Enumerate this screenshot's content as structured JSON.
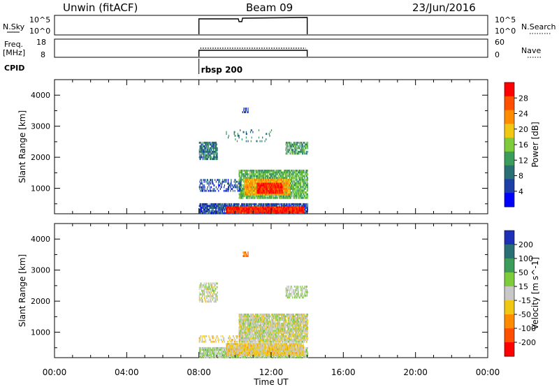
{
  "header": {
    "station": "Unwin (fitACF)",
    "beam": "Beam 09",
    "date": "23/Jun/2016"
  },
  "strips": {
    "nsky_label": "N.Sky",
    "nsky_ticks": [
      "10^5",
      "10^0"
    ],
    "freq_label_line1": "Freq.",
    "freq_label_line2": "[MHz]",
    "freq_ticks": [
      "18",
      "8"
    ],
    "cpid_label": "CPID",
    "nsearch_label": "N.Search",
    "nsearch_ticks": [
      "10^5",
      "10^0"
    ],
    "nave_label": "Nave",
    "nave_ticks": [
      "60",
      "0"
    ],
    "cpid_name": "rbsp 200"
  },
  "x_axis": {
    "label": "Time UT",
    "ticks": [
      "00:00",
      "04:00",
      "08:00",
      "12:00",
      "16:00",
      "20:00",
      "00:00"
    ]
  },
  "colors": {
    "power": [
      "#0000ff",
      "#1e3fa8",
      "#2a6f73",
      "#3c9c5a",
      "#7ecb3c",
      "#f0c814",
      "#ff8c00",
      "#ff5000",
      "#ff0000"
    ],
    "velocity": [
      "#1e2fb8",
      "#2a6f73",
      "#3c9c5a",
      "#7ecb3c",
      "#c8c8c8",
      "#f0c814",
      "#ff8c00",
      "#ff5000",
      "#ff0000"
    ]
  },
  "chart_data": [
    {
      "type": "heatmap",
      "name": "power",
      "ylabel": "Slant Range [km]",
      "xlabel": "",
      "y_ticks": [
        "1000",
        "2000",
        "3000",
        "4000"
      ],
      "ylim": [
        180,
        4500
      ],
      "xlim_hours": [
        0,
        24
      ],
      "colorbar_label": "Power [dB]",
      "colorbar_ticks": [
        "4",
        "8",
        "12",
        "16",
        "20",
        "24",
        "28"
      ],
      "colorbar_range": [
        0,
        32
      ],
      "blobs": [
        {
          "t0": 8.0,
          "t1": 14.0,
          "r0": 200,
          "r1": 520,
          "value": 6,
          "density": 0.8
        },
        {
          "t0": 9.5,
          "t1": 13.8,
          "r0": 220,
          "r1": 420,
          "value": 29,
          "density": 0.95
        },
        {
          "t0": 10.2,
          "t1": 14.0,
          "r0": 720,
          "r1": 1600,
          "value": 14,
          "density": 0.75
        },
        {
          "t0": 10.5,
          "t1": 13.0,
          "r0": 820,
          "r1": 1300,
          "value": 22,
          "density": 0.9
        },
        {
          "t0": 11.2,
          "t1": 12.6,
          "r0": 880,
          "r1": 1180,
          "value": 29,
          "density": 0.95
        },
        {
          "t0": 8.0,
          "t1": 10.3,
          "r0": 900,
          "r1": 1300,
          "value": 6,
          "density": 0.35
        },
        {
          "t0": 8.0,
          "t1": 9.0,
          "r0": 1950,
          "r1": 2500,
          "value": 9,
          "density": 0.7
        },
        {
          "t0": 12.8,
          "t1": 14.0,
          "r0": 2100,
          "r1": 2500,
          "value": 12,
          "density": 0.6
        },
        {
          "t0": 9.5,
          "t1": 12.0,
          "r0": 2500,
          "r1": 2900,
          "value": 10,
          "density": 0.08
        },
        {
          "t0": 10.4,
          "t1": 10.7,
          "r0": 3450,
          "r1": 3600,
          "value": 6,
          "density": 0.6
        }
      ]
    },
    {
      "type": "heatmap",
      "name": "velocity",
      "ylabel": "Slant Range [km]",
      "xlabel": "Time UT",
      "y_ticks": [
        "1000",
        "2000",
        "3000",
        "4000"
      ],
      "ylim": [
        180,
        4500
      ],
      "xlim_hours": [
        0,
        24
      ],
      "colorbar_label": "Velocity [m s^-1]",
      "colorbar_ticks": [
        "200",
        "100",
        "50",
        "15",
        "-15",
        "-50",
        "-100",
        "-200"
      ],
      "colorbar_range": [
        -250,
        250
      ],
      "blobs": [
        {
          "t0": 8.0,
          "t1": 14.0,
          "r0": 200,
          "r1": 520,
          "value": 30,
          "density": 0.75
        },
        {
          "t0": 9.5,
          "t1": 13.8,
          "r0": 280,
          "r1": 650,
          "value": -40,
          "density": 0.9
        },
        {
          "t0": 10.2,
          "t1": 14.0,
          "r0": 720,
          "r1": 1600,
          "value": 0,
          "density": 0.85
        },
        {
          "t0": 8.0,
          "t1": 10.3,
          "r0": 700,
          "r1": 900,
          "value": -40,
          "density": 0.3
        },
        {
          "t0": 8.0,
          "t1": 9.0,
          "r0": 2000,
          "r1": 2600,
          "value": 5,
          "density": 0.5
        },
        {
          "t0": 12.8,
          "t1": 14.0,
          "r0": 2100,
          "r1": 2500,
          "value": 30,
          "density": 0.5
        },
        {
          "t0": 10.4,
          "t1": 10.7,
          "r0": 3450,
          "r1": 3600,
          "value": -150,
          "density": 0.6
        }
      ]
    }
  ],
  "activity": {
    "start_hour": 8.0,
    "end_hour": 14.0,
    "nsky_dip_hour": 10.3
  }
}
